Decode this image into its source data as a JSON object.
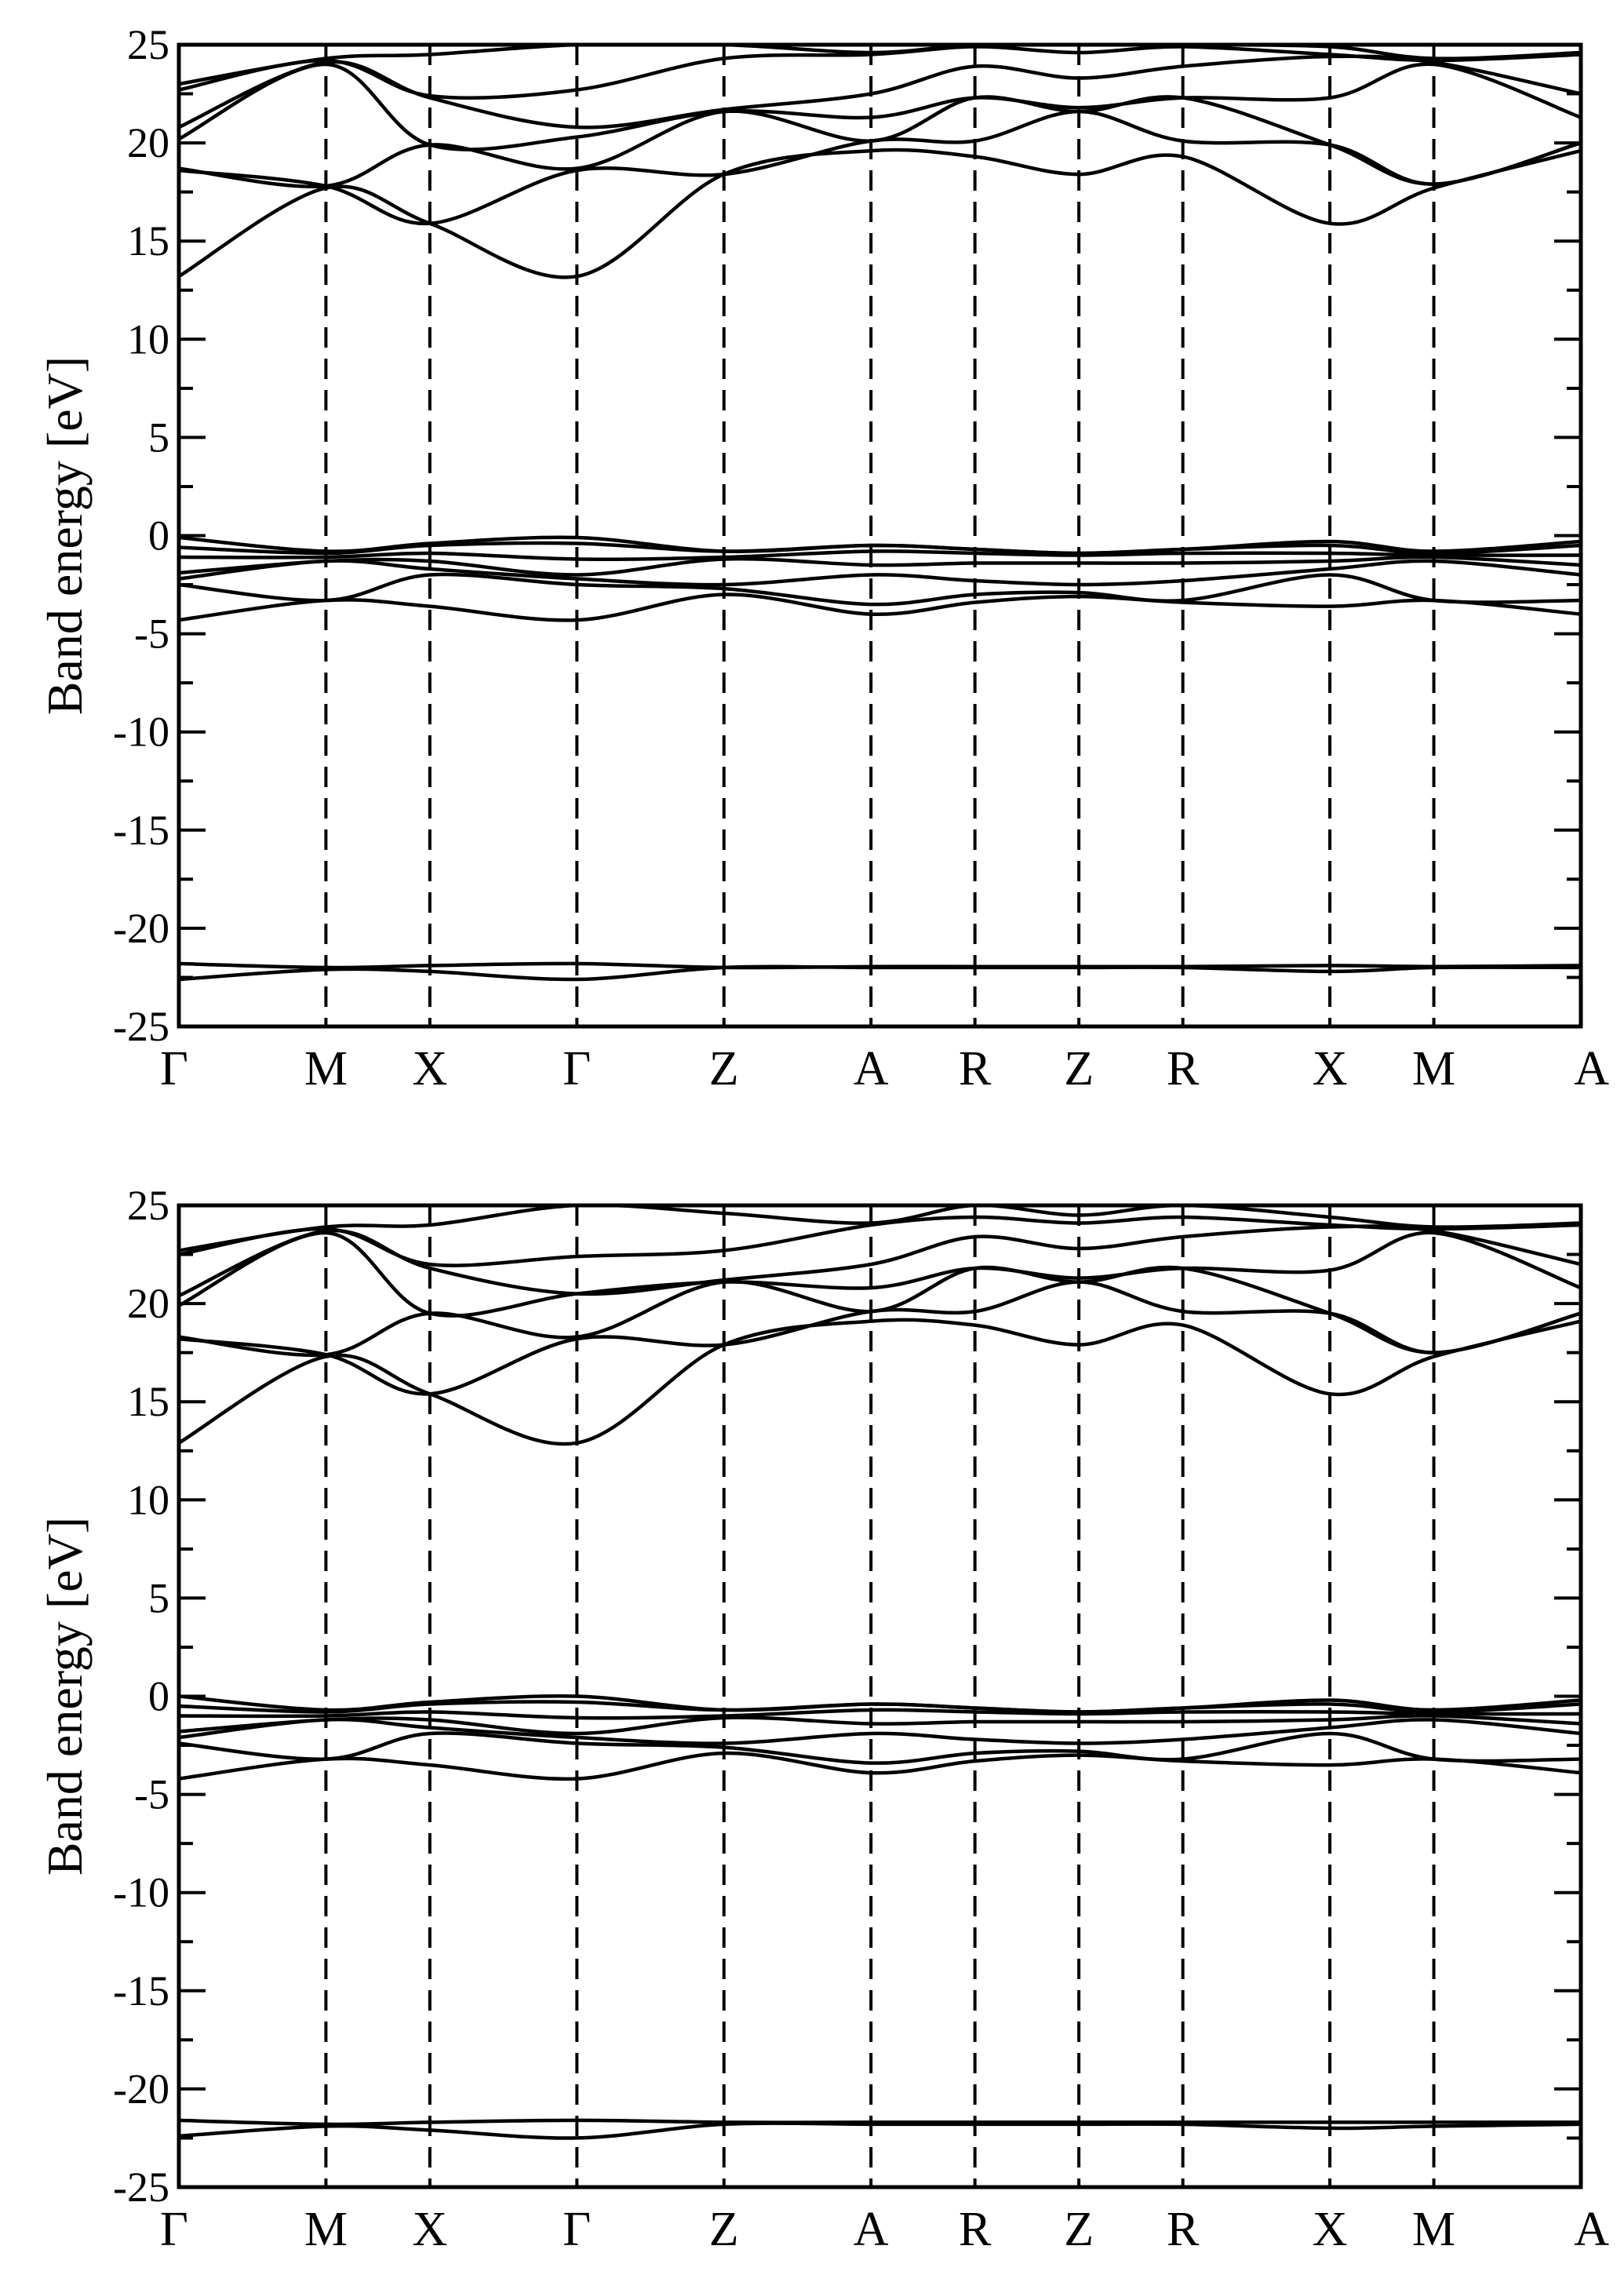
{
  "chart_data": [
    {
      "type": "line",
      "title": "",
      "ylabel": "Band energy [eV]",
      "xlabel": "",
      "ylim": [
        -25,
        25
      ],
      "yticks": [
        "25",
        "20",
        "15",
        "10",
        "5",
        "0",
        "-5",
        "-10",
        "-15",
        "-20",
        "-25"
      ],
      "yticks_values": [
        25,
        20,
        15,
        10,
        5,
        0,
        -5,
        -10,
        -15,
        -20,
        -25
      ],
      "kpath_labels": [
        "Γ",
        "M",
        "X",
        "Γ",
        "Z",
        "A",
        "R",
        "Z",
        "R",
        "X",
        "M",
        "A"
      ],
      "kpath_positions": [
        0,
        1,
        1.707,
        2.707,
        3.707,
        4.707,
        5.414,
        6.121,
        6.828,
        7.828,
        8.535,
        9.535
      ],
      "grid": false,
      "series": [
        {
          "values": [
            -22.6,
            -22.1,
            -22.2,
            -22.6,
            -22.0,
            -22.0,
            -22.0,
            -22.0,
            -22.0,
            -22.2,
            -22.0,
            -22.0
          ]
        },
        {
          "values": [
            -21.8,
            -22.0,
            -21.9,
            -21.8,
            -22.0,
            -21.95,
            -21.95,
            -21.95,
            -21.95,
            -21.9,
            -21.95,
            -21.9
          ]
        },
        {
          "values": [
            -4.3,
            -3.3,
            -3.6,
            -4.3,
            -3.0,
            -4.0,
            -3.4,
            -3.1,
            -3.4,
            -3.6,
            -3.3,
            -4.0
          ]
        },
        {
          "values": [
            -2.5,
            -3.3,
            -2.0,
            -2.5,
            -2.7,
            -3.5,
            -3.0,
            -2.9,
            -3.3,
            -2.0,
            -3.3,
            -3.3
          ]
        },
        {
          "values": [
            -2.2,
            -1.3,
            -1.7,
            -2.2,
            -2.5,
            -2.0,
            -2.3,
            -2.5,
            -2.3,
            -1.7,
            -1.3,
            -2.0
          ]
        },
        {
          "values": [
            -1.9,
            -1.3,
            -1.3,
            -2.0,
            -1.2,
            -1.5,
            -1.4,
            -1.4,
            -1.4,
            -1.3,
            -1.1,
            -1.5
          ]
        },
        {
          "values": [
            -1.1,
            -1.1,
            -0.9,
            -1.2,
            -1.1,
            -0.8,
            -0.9,
            -1.0,
            -0.9,
            -0.9,
            -1.0,
            -1.0
          ]
        },
        {
          "values": [
            -0.6,
            -0.9,
            -0.5,
            -0.4,
            -0.8,
            -0.5,
            -0.7,
            -0.9,
            -0.7,
            -0.5,
            -0.9,
            -0.5
          ]
        },
        {
          "values": [
            -0.1,
            -0.8,
            -0.4,
            -0.1,
            -0.8,
            -0.5,
            -0.7,
            -0.9,
            -0.7,
            -0.3,
            -0.8,
            -0.3
          ]
        },
        {
          "values": [
            13.2,
            17.7,
            15.9,
            13.2,
            18.4,
            19.6,
            19.3,
            18.4,
            19.3,
            15.9,
            17.7,
            19.6
          ]
        },
        {
          "values": [
            18.6,
            17.8,
            15.9,
            18.6,
            18.4,
            20.1,
            20.1,
            21.6,
            20.1,
            19.9,
            17.9,
            20.0
          ]
        },
        {
          "values": [
            18.7,
            17.8,
            19.9,
            18.7,
            21.6,
            20.1,
            22.3,
            21.6,
            22.3,
            19.9,
            17.9,
            20.0
          ]
        },
        {
          "values": [
            20.2,
            24.0,
            19.9,
            20.3,
            21.6,
            21.3,
            22.3,
            21.8,
            22.3,
            22.3,
            24.0,
            21.3
          ]
        },
        {
          "values": [
            20.8,
            24.1,
            22.3,
            20.8,
            21.7,
            22.5,
            23.9,
            23.3,
            23.9,
            24.4,
            24.1,
            22.5
          ]
        },
        {
          "values": [
            22.7,
            24.2,
            22.4,
            22.7,
            24.3,
            24.5,
            24.9,
            24.6,
            24.9,
            24.5,
            24.2,
            24.5
          ]
        },
        {
          "values": [
            23.0,
            24.3,
            24.5,
            25.0,
            25.0,
            24.6,
            25.0,
            25.0,
            25.0,
            24.9,
            24.3,
            24.6
          ]
        }
      ]
    },
    {
      "type": "line",
      "title": "",
      "ylabel": "Band energy [eV]",
      "xlabel": "",
      "ylim": [
        -25,
        25
      ],
      "yticks": [
        "25",
        "20",
        "15",
        "10",
        "5",
        "0",
        "-5",
        "-10",
        "-15",
        "-20",
        "-25"
      ],
      "yticks_values": [
        25,
        20,
        15,
        10,
        5,
        0,
        -5,
        -10,
        -15,
        -20,
        -25
      ],
      "kpath_labels": [
        "Γ",
        "M",
        "X",
        "Γ",
        "Z",
        "A",
        "R",
        "Z",
        "R",
        "X",
        "M",
        "A"
      ],
      "kpath_positions": [
        0,
        1,
        1.707,
        2.707,
        3.707,
        4.707,
        5.414,
        6.121,
        6.828,
        7.828,
        8.535,
        9.535
      ],
      "grid": false,
      "series": [
        {
          "values": [
            -22.4,
            -21.9,
            -22.1,
            -22.5,
            -21.8,
            -21.8,
            -21.8,
            -21.8,
            -21.8,
            -22.0,
            -21.9,
            -21.8
          ]
        },
        {
          "values": [
            -21.6,
            -21.8,
            -21.7,
            -21.6,
            -21.7,
            -21.7,
            -21.7,
            -21.7,
            -21.7,
            -21.7,
            -21.7,
            -21.7
          ]
        },
        {
          "values": [
            -4.2,
            -3.2,
            -3.5,
            -4.2,
            -2.9,
            -3.9,
            -3.3,
            -3.0,
            -3.3,
            -3.5,
            -3.2,
            -3.9
          ]
        },
        {
          "values": [
            -2.4,
            -3.2,
            -1.9,
            -2.4,
            -2.6,
            -3.4,
            -2.9,
            -2.8,
            -3.2,
            -1.9,
            -3.2,
            -3.2
          ]
        },
        {
          "values": [
            -2.1,
            -1.2,
            -1.6,
            -2.1,
            -2.4,
            -1.9,
            -2.2,
            -2.4,
            -2.2,
            -1.6,
            -1.2,
            -1.9
          ]
        },
        {
          "values": [
            -1.8,
            -1.2,
            -1.2,
            -1.9,
            -1.1,
            -1.4,
            -1.3,
            -1.3,
            -1.3,
            -1.2,
            -1.0,
            -1.4
          ]
        },
        {
          "values": [
            -1.0,
            -1.0,
            -0.8,
            -1.1,
            -1.0,
            -0.7,
            -0.8,
            -0.9,
            -0.8,
            -0.8,
            -0.9,
            -0.9
          ]
        },
        {
          "values": [
            -0.5,
            -0.8,
            -0.4,
            -0.3,
            -0.7,
            -0.4,
            -0.6,
            -0.8,
            -0.6,
            -0.4,
            -0.8,
            -0.4
          ]
        },
        {
          "values": [
            0.0,
            -0.7,
            -0.3,
            0.0,
            -0.7,
            -0.4,
            -0.6,
            -0.8,
            -0.6,
            -0.2,
            -0.7,
            -0.2
          ]
        },
        {
          "values": [
            12.9,
            17.3,
            15.4,
            12.9,
            17.9,
            19.1,
            18.9,
            17.9,
            18.9,
            15.4,
            17.3,
            19.1
          ]
        },
        {
          "values": [
            18.2,
            17.4,
            15.4,
            18.2,
            17.9,
            19.6,
            19.6,
            21.1,
            19.6,
            19.5,
            17.5,
            19.5
          ]
        },
        {
          "values": [
            18.3,
            17.4,
            19.5,
            18.3,
            21.1,
            19.6,
            21.8,
            21.1,
            21.8,
            19.5,
            17.5,
            19.5
          ]
        },
        {
          "values": [
            19.9,
            23.6,
            19.5,
            20.5,
            21.1,
            20.8,
            21.8,
            21.3,
            21.8,
            21.7,
            23.6,
            20.8
          ]
        },
        {
          "values": [
            20.4,
            23.7,
            21.8,
            20.5,
            21.2,
            22.0,
            23.4,
            22.8,
            23.4,
            23.9,
            23.7,
            22.0
          ]
        },
        {
          "values": [
            22.5,
            23.8,
            22.0,
            22.4,
            22.7,
            24.0,
            24.4,
            24.1,
            24.4,
            24.0,
            23.8,
            24.0
          ]
        },
        {
          "values": [
            22.7,
            23.9,
            24.0,
            25.0,
            24.6,
            24.1,
            25.0,
            24.5,
            25.0,
            24.4,
            23.9,
            24.1
          ]
        }
      ]
    }
  ]
}
